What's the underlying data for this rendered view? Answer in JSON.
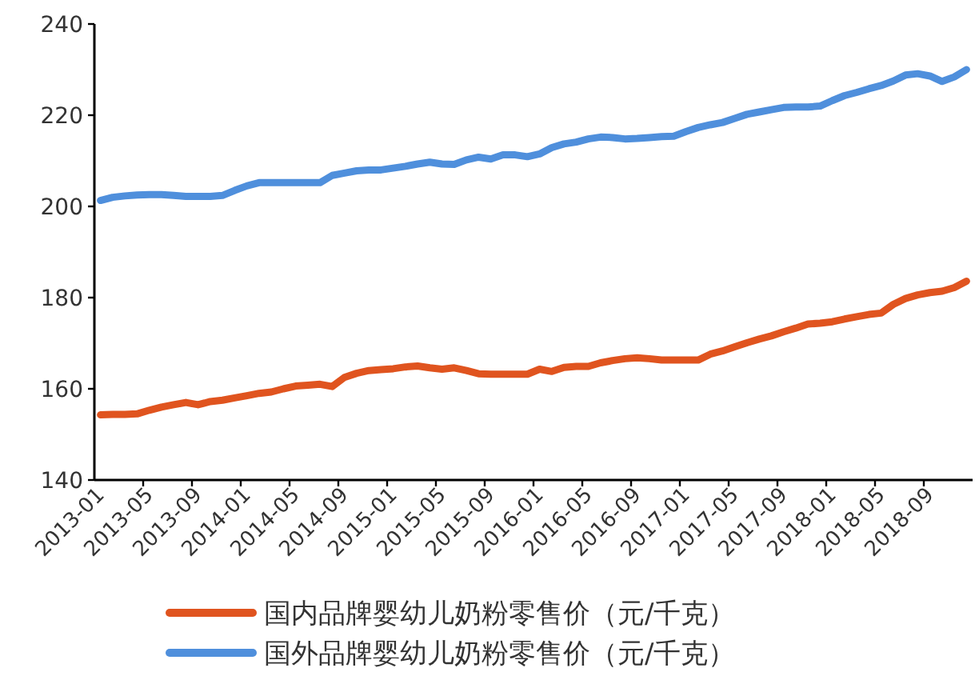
{
  "chart_data": {
    "type": "line",
    "categories": [
      "2013-01",
      null,
      null,
      null,
      "2013-05",
      null,
      null,
      null,
      "2013-09",
      null,
      null,
      null,
      "2014-01",
      null,
      null,
      null,
      "2014-05",
      null,
      null,
      null,
      "2014-09",
      null,
      null,
      null,
      "2015-01",
      null,
      null,
      null,
      "2015-05",
      null,
      null,
      null,
      "2015-09",
      null,
      null,
      null,
      "2016-01",
      null,
      null,
      null,
      "2016-05",
      null,
      null,
      null,
      "2016-09",
      null,
      null,
      null,
      "2017-01",
      null,
      null,
      null,
      "2017-05",
      null,
      null,
      null,
      "2017-09",
      null,
      null,
      null,
      "2018-01",
      null,
      null,
      null,
      "2018-05",
      null,
      null,
      null,
      "2018-09",
      null,
      null,
      null
    ],
    "series": [
      {
        "name": "国内品牌婴幼儿奶粉零售价（元/千克）",
        "color": "#e0541f",
        "values": [
          154.3,
          154.4,
          154.4,
          154.5,
          155.3,
          156,
          156.5,
          157,
          156.5,
          157.2,
          157.5,
          158,
          158.5,
          159,
          159.3,
          160,
          160.6,
          160.8,
          161,
          160.5,
          162.5,
          163.4,
          164,
          164.2,
          164.4,
          164.8,
          165,
          164.6,
          164.3,
          164.6,
          164,
          163.3,
          163.2,
          163.2,
          163.2,
          163.2,
          164.3,
          163.8,
          164.7,
          164.9,
          164.9,
          165.7,
          166.2,
          166.6,
          166.8,
          166.6,
          166.3,
          166.3,
          166.3,
          166.3,
          167.6,
          168.3,
          169.2,
          170.1,
          170.9,
          171.6,
          172.5,
          173.3,
          174.2,
          174.4,
          174.7,
          175.3,
          175.8,
          176.3,
          176.6,
          178.5,
          179.8,
          180.6,
          181.1,
          181.4,
          182.2,
          183.6
        ]
      },
      {
        "name": "国外品牌婴幼儿奶粉零售价（元/千克）",
        "color": "#4f8fdc",
        "values": [
          201.3,
          202,
          202.3,
          202.5,
          202.6,
          202.6,
          202.4,
          202.2,
          202.2,
          202.2,
          202.4,
          203.5,
          204.5,
          205.2,
          205.2,
          205.2,
          205.2,
          205.2,
          205.2,
          206.8,
          207.3,
          207.8,
          208,
          208,
          208.4,
          208.8,
          209.3,
          209.7,
          209.3,
          209.2,
          210.2,
          210.8,
          210.4,
          211.3,
          211.3,
          210.9,
          211.5,
          212.9,
          213.7,
          214.1,
          214.8,
          215.2,
          215.1,
          214.8,
          214.9,
          215.1,
          215.3,
          215.4,
          216.4,
          217.3,
          217.9,
          218.4,
          219.3,
          220.2,
          220.7,
          221.2,
          221.7,
          221.8,
          221.8,
          222,
          223.2,
          224.3,
          225,
          225.8,
          226.5,
          227.5,
          228.8,
          229.1,
          228.6,
          227.4,
          228.4,
          230
        ]
      }
    ],
    "ylim": [
      140,
      240
    ],
    "yticks": [
      140,
      160,
      180,
      200,
      220,
      240
    ],
    "legend": "bottom"
  }
}
